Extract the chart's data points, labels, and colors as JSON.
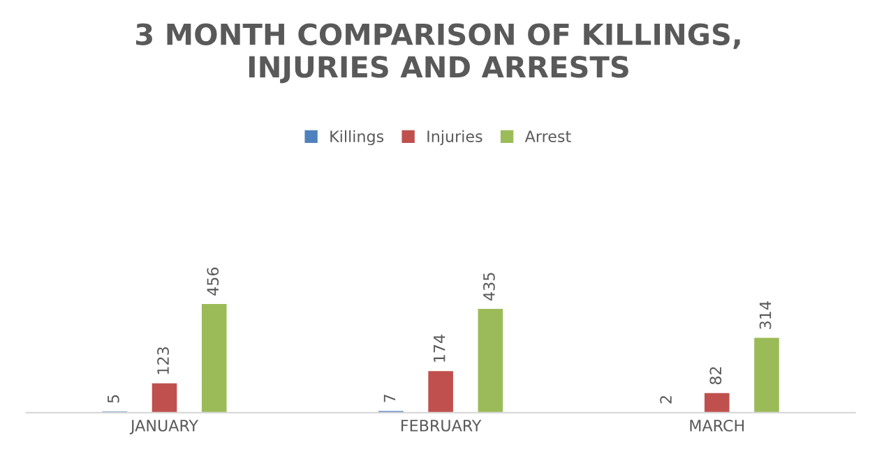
{
  "chart_data": {
    "type": "bar",
    "title": "3 MONTH COMPARISON OF KILLINGS,\nINJURIES AND ARRESTS",
    "categories": [
      "JANUARY",
      "FEBRUARY",
      "MARCH"
    ],
    "series": [
      {
        "name": "Killings",
        "color": "#4f81bd",
        "values": [
          5,
          7,
          2
        ]
      },
      {
        "name": "Injuries",
        "color": "#c0504d",
        "values": [
          123,
          174,
          82
        ]
      },
      {
        "name": "Arrest",
        "color": "#9bbb59",
        "values": [
          456,
          435,
          314
        ]
      }
    ],
    "data_labels": true,
    "legend": "top",
    "grid": false
  }
}
